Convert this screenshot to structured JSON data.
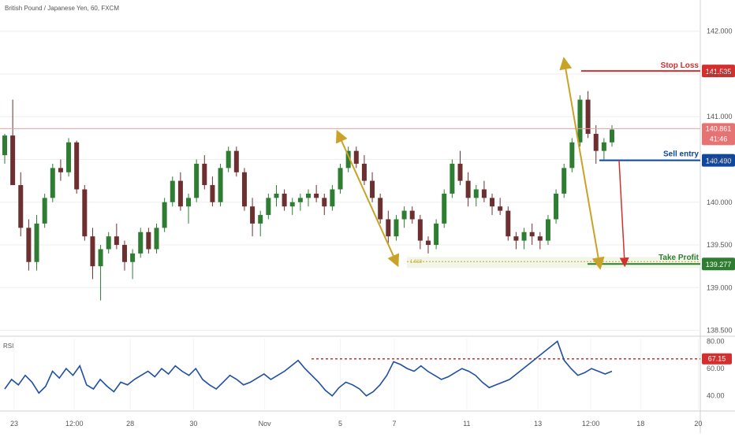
{
  "header": {
    "symbol_text": "British Pound / Japanese Yen, 60, FXCM"
  },
  "colors": {
    "up": "#2e7d32",
    "down": "#6d2f2f",
    "ann_red": "#d32f2f",
    "ann_blue": "#0d47a1",
    "ann_green": "#2e7d32",
    "ann_gold": "#c9a227",
    "rsi_line": "#1e4fa0",
    "pane_grid": "#eeeeee",
    "scale_text": "#555555",
    "current_price_line": "#e8a0a0",
    "current_price_bg": "#e57373"
  },
  "chart_data": [
    {
      "type": "candlestick",
      "title": "British Pound / Japanese Yen, 60, FXCM",
      "y_scale": {
        "ylim": [
          138.45,
          142.2
        ],
        "ticks": [
          142.0,
          141.5,
          141.0,
          140.5,
          140.0,
          139.5,
          139.0,
          138.5
        ],
        "tick_labels": [
          "142.000",
          "141.500",
          "141.000",
          "140.500",
          "140.000",
          "139.500",
          "139.000",
          "138.500"
        ]
      },
      "x_axis": {
        "tick_labels": [
          "23",
          "12:00",
          "28",
          "30",
          "Nov",
          "5",
          "7",
          "11",
          "13",
          "12:00",
          "18",
          "20",
          "12:00"
        ],
        "tick_positions": [
          0.0,
          0.098,
          0.189,
          0.292,
          0.408,
          0.531,
          0.619,
          0.737,
          0.853,
          0.939,
          1.02,
          1.114,
          1.2
        ]
      },
      "candles": [
        [
          140.55,
          140.8,
          140.45,
          140.78
        ],
        [
          140.78,
          141.2,
          140.2,
          140.2
        ],
        [
          140.2,
          140.35,
          139.6,
          139.7
        ],
        [
          139.7,
          139.8,
          139.2,
          139.3
        ],
        [
          139.3,
          139.85,
          139.2,
          139.75
        ],
        [
          139.75,
          140.1,
          139.7,
          140.05
        ],
        [
          140.05,
          140.45,
          140.0,
          140.4
        ],
        [
          140.4,
          140.5,
          140.25,
          140.35
        ],
        [
          140.35,
          140.75,
          140.3,
          140.7
        ],
        [
          140.7,
          140.72,
          140.1,
          140.15
        ],
        [
          140.15,
          140.2,
          139.55,
          139.6
        ],
        [
          139.6,
          139.7,
          139.1,
          139.25
        ],
        [
          139.25,
          139.5,
          138.85,
          139.45
        ],
        [
          139.45,
          139.65,
          139.4,
          139.6
        ],
        [
          139.6,
          139.75,
          139.45,
          139.5
        ],
        [
          139.5,
          139.55,
          139.2,
          139.3
        ],
        [
          139.3,
          139.45,
          139.1,
          139.4
        ],
        [
          139.4,
          139.7,
          139.35,
          139.65
        ],
        [
          139.65,
          139.7,
          139.4,
          139.45
        ],
        [
          139.45,
          139.75,
          139.4,
          139.7
        ],
        [
          139.7,
          140.05,
          139.65,
          140.0
        ],
        [
          140.0,
          140.3,
          139.95,
          140.25
        ],
        [
          140.25,
          140.35,
          139.9,
          139.95
        ],
        [
          139.95,
          140.1,
          139.75,
          140.05
        ],
        [
          140.05,
          140.5,
          140.0,
          140.45
        ],
        [
          140.45,
          140.55,
          140.15,
          140.2
        ],
        [
          140.2,
          140.3,
          139.95,
          140.0
        ],
        [
          140.0,
          140.45,
          139.95,
          140.4
        ],
        [
          140.4,
          140.65,
          140.35,
          140.6
        ],
        [
          140.6,
          140.65,
          140.3,
          140.35
        ],
        [
          140.35,
          140.4,
          139.9,
          139.95
        ],
        [
          139.95,
          140.05,
          139.6,
          139.75
        ],
        [
          139.75,
          139.9,
          139.6,
          139.85
        ],
        [
          139.85,
          140.1,
          139.8,
          140.05
        ],
        [
          140.05,
          140.2,
          139.95,
          140.1
        ],
        [
          140.1,
          140.15,
          139.9,
          139.95
        ],
        [
          139.95,
          140.05,
          139.85,
          140.0
        ],
        [
          140.0,
          140.1,
          139.9,
          140.05
        ],
        [
          140.05,
          140.15,
          139.95,
          140.1
        ],
        [
          140.1,
          140.2,
          140.0,
          140.05
        ],
        [
          140.05,
          140.1,
          139.85,
          139.95
        ],
        [
          139.95,
          140.2,
          139.9,
          140.15
        ],
        [
          140.15,
          140.45,
          140.1,
          140.4
        ],
        [
          140.4,
          140.65,
          140.35,
          140.6
        ],
        [
          140.6,
          140.65,
          140.4,
          140.45
        ],
        [
          140.45,
          140.55,
          140.2,
          140.25
        ],
        [
          140.25,
          140.35,
          140.0,
          140.05
        ],
        [
          140.05,
          140.1,
          139.75,
          139.8
        ],
        [
          139.8,
          139.9,
          139.5,
          139.6
        ],
        [
          139.6,
          139.85,
          139.55,
          139.8
        ],
        [
          139.8,
          139.95,
          139.7,
          139.9
        ],
        [
          139.9,
          139.95,
          139.75,
          139.8
        ],
        [
          139.8,
          139.85,
          139.45,
          139.55
        ],
        [
          139.55,
          139.6,
          139.4,
          139.5
        ],
        [
          139.5,
          139.8,
          139.45,
          139.75
        ],
        [
          139.75,
          140.15,
          139.7,
          140.1
        ],
        [
          140.1,
          140.5,
          140.05,
          140.45
        ],
        [
          140.45,
          140.6,
          140.2,
          140.25
        ],
        [
          140.25,
          140.35,
          139.95,
          140.05
        ],
        [
          140.05,
          140.2,
          139.95,
          140.15
        ],
        [
          140.15,
          140.25,
          140.0,
          140.05
        ],
        [
          140.05,
          140.1,
          139.85,
          139.95
        ],
        [
          139.95,
          140.05,
          139.85,
          139.9
        ],
        [
          139.9,
          139.95,
          139.55,
          139.6
        ],
        [
          139.6,
          139.65,
          139.45,
          139.55
        ],
        [
          139.55,
          139.7,
          139.45,
          139.65
        ],
        [
          139.65,
          139.75,
          139.5,
          139.6
        ],
        [
          139.6,
          139.65,
          139.45,
          139.55
        ],
        [
          139.55,
          139.85,
          139.5,
          139.8
        ],
        [
          139.8,
          140.15,
          139.75,
          140.1
        ],
        [
          140.1,
          140.45,
          140.05,
          140.4
        ],
        [
          140.4,
          140.75,
          140.35,
          140.7
        ],
        [
          140.7,
          141.25,
          140.65,
          141.2
        ],
        [
          141.2,
          141.3,
          140.75,
          140.8
        ],
        [
          140.8,
          140.9,
          140.45,
          140.6
        ],
        [
          140.6,
          140.75,
          140.5,
          140.7
        ],
        [
          140.7,
          140.9,
          140.65,
          140.85
        ]
      ],
      "annotations": {
        "stop_loss": {
          "label": "Stop Loss",
          "price": 141.535,
          "price_label": "141.535"
        },
        "sell_entry": {
          "label": "Sell entry",
          "price": 140.49,
          "price_label": "140.490"
        },
        "take_profit": {
          "label": "Take Profit",
          "price": 139.277,
          "price_label": "139.277"
        },
        "fib_label": "1.618",
        "current_price": {
          "price": 140.861,
          "price_label": "140.861",
          "countdown": "41:46"
        }
      }
    },
    {
      "type": "line",
      "title": "RSI",
      "y_scale": {
        "ylim": [
          30,
          82
        ],
        "ticks": [
          80,
          60,
          40
        ],
        "tick_labels": [
          "80.00",
          "60.00",
          "40.00"
        ]
      },
      "level": {
        "value": 67.15,
        "label": "67.15"
      },
      "series": [
        {
          "values": [
            45,
            52,
            48,
            55,
            50,
            42,
            47,
            58,
            53,
            60,
            55,
            62,
            48,
            45,
            52,
            47,
            43,
            50,
            48,
            52,
            55,
            58,
            54,
            60,
            56,
            62,
            58,
            55,
            60,
            52,
            48,
            45,
            50,
            55,
            52,
            48,
            50,
            53,
            56,
            52,
            55,
            58,
            62,
            66,
            60,
            55,
            50,
            44,
            40,
            46,
            50,
            48,
            45,
            40,
            43,
            48,
            55,
            65,
            63,
            60,
            58,
            62,
            58,
            55,
            52,
            54,
            57,
            60,
            58,
            55,
            50,
            46,
            48,
            50,
            52,
            56,
            60,
            64,
            68,
            72,
            76,
            80,
            66,
            60,
            55,
            57,
            60,
            58,
            56,
            58
          ]
        }
      ]
    }
  ]
}
